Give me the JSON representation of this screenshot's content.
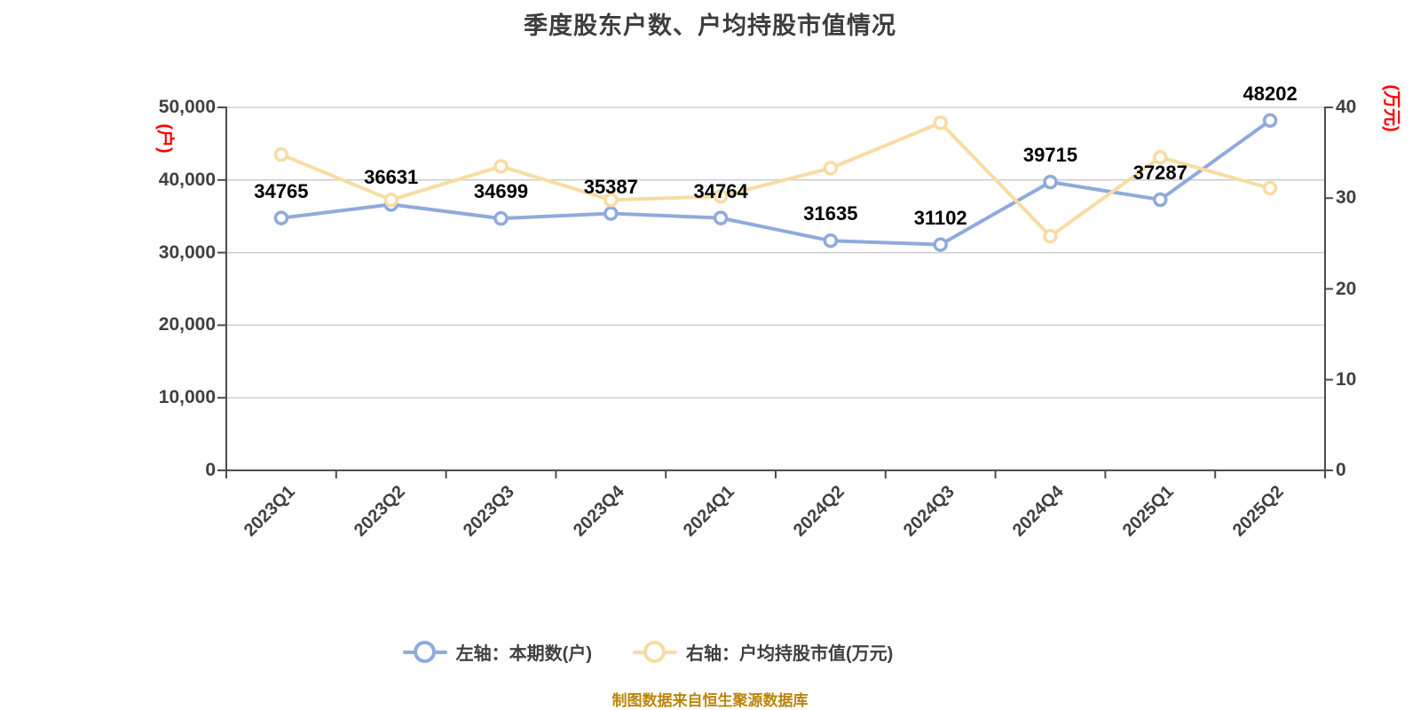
{
  "title": "季度股东户数、户均持股市值情况",
  "source_note": "制图数据来自恒生聚源数据库",
  "colors": {
    "series_blue": "#8FAADC",
    "series_yellow": "#F7DCA3",
    "axis_line": "#4D4D4D",
    "grid_line": "#CDCDCD",
    "axis_text": "#404040",
    "unit_label_red": "#FF0000",
    "data_label": "#000000",
    "caption_gold": "#B8860B",
    "title_text": "#3D3D3D"
  },
  "left_axis": {
    "unit_label": "(户)",
    "tick_values": [
      0,
      10000,
      20000,
      30000,
      40000,
      50000
    ],
    "tick_labels": [
      "0",
      "10,000",
      "20,000",
      "30,000",
      "40,000",
      "50,000"
    ],
    "max": 50000
  },
  "right_axis": {
    "unit_label": "(万元)",
    "tick_values": [
      0,
      10,
      20,
      30,
      40
    ],
    "tick_labels": [
      "0",
      "10",
      "20",
      "30",
      "40"
    ],
    "max": 40
  },
  "legend": {
    "items": [
      {
        "label": "左轴：本期数(户)",
        "color": "#8FAADC"
      },
      {
        "label": "右轴：户均持股市值(万元)",
        "color": "#F7DCA3"
      }
    ]
  },
  "chart_data": {
    "type": "line",
    "title": "季度股东户数、户均持股市值情况",
    "categories": [
      "2023Q1",
      "2023Q2",
      "2023Q3",
      "2023Q4",
      "2024Q1",
      "2024Q2",
      "2024Q3",
      "2024Q4",
      "2025Q1",
      "2025Q2"
    ],
    "series": [
      {
        "name": "左轴：本期数(户)",
        "axis": "left",
        "color": "#8FAADC",
        "show_point_labels": true,
        "values": [
          34765,
          36631,
          34699,
          35387,
          34764,
          31635,
          31102,
          39715,
          37287,
          48202
        ]
      },
      {
        "name": "右轴：户均持股市值(万元)",
        "axis": "right",
        "color": "#F7DCA3",
        "show_point_labels": false,
        "values": [
          34.8,
          29.8,
          33.5,
          29.8,
          30.2,
          33.3,
          38.3,
          25.8,
          34.5,
          31.1
        ]
      }
    ],
    "left_ylim": [
      0,
      50000
    ],
    "right_ylim": [
      0,
      40
    ],
    "grid": true,
    "legend_position": "bottom"
  }
}
